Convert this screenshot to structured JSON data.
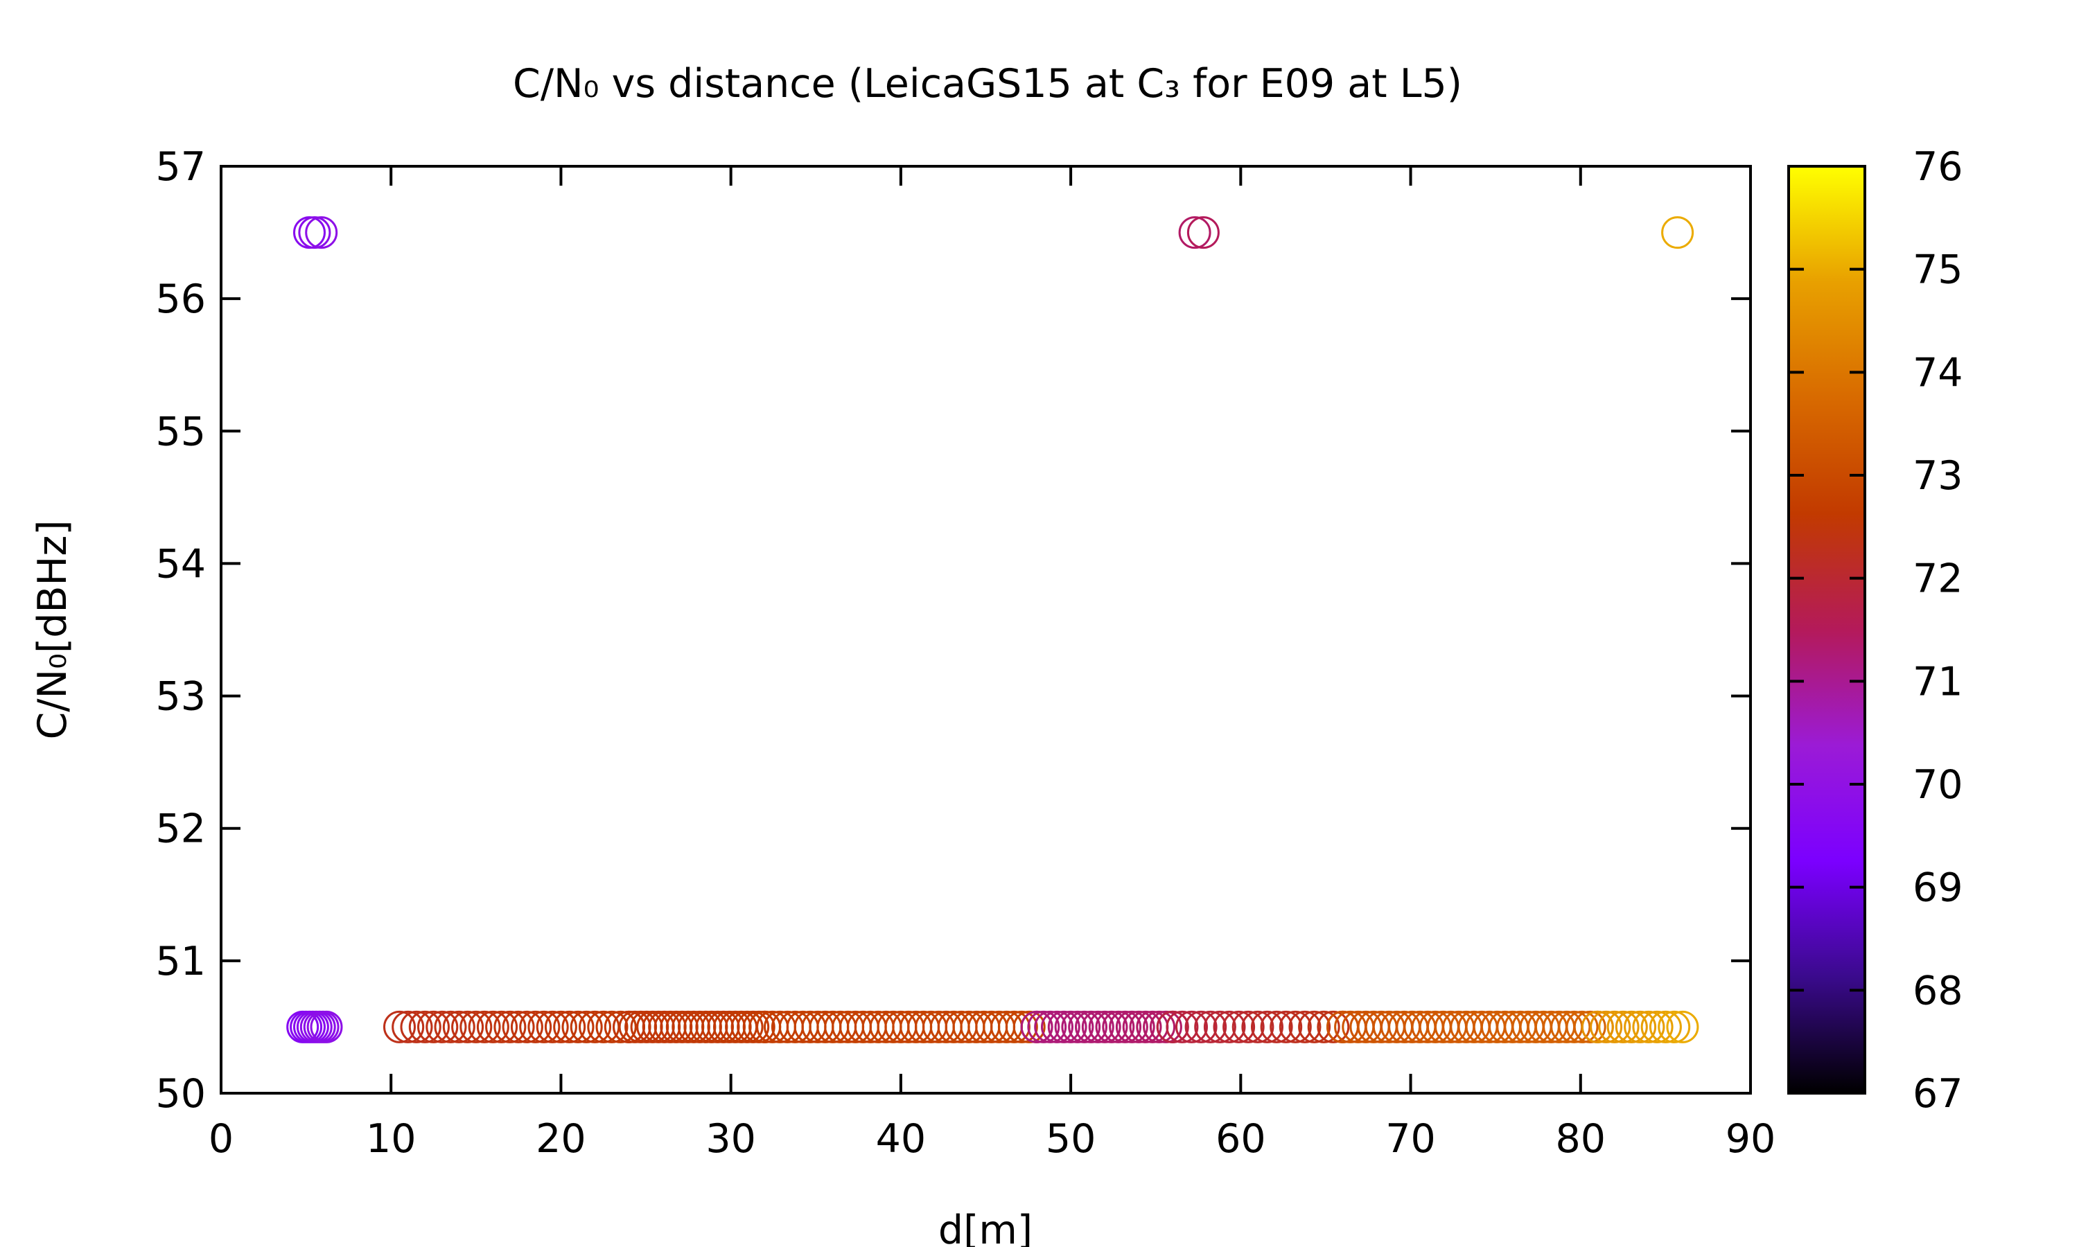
{
  "chart_data": {
    "type": "scatter",
    "title": "C/N₀ vs distance (LeicaGS15 at C₃ for E09 at L5)",
    "xlabel": "d[m]",
    "ylabel": "C/N₀[dBHz]",
    "xlim": [
      0,
      90
    ],
    "ylim": [
      50,
      57
    ],
    "x_ticks": [
      "0",
      "10",
      "20",
      "30",
      "40",
      "50",
      "60",
      "70",
      "80",
      "90"
    ],
    "y_ticks": [
      "50",
      "51",
      "52",
      "53",
      "54",
      "55",
      "56",
      "57"
    ],
    "grid": false,
    "marker": "open-circle",
    "colorbar": {
      "range": [
        67,
        76
      ],
      "ticks": [
        "67",
        "68",
        "69",
        "70",
        "71",
        "72",
        "73",
        "74",
        "75",
        "76"
      ],
      "palette": [
        "#000000",
        "#3a0a8c",
        "#7b00ff",
        "#9b1bd6",
        "#b41a5a",
        "#c23a00",
        "#d86a00",
        "#e8a000",
        "#ffff00"
      ]
    },
    "points": [
      {
        "x": 5.2,
        "y": 56.5,
        "c": 69.7
      },
      {
        "x": 5.5,
        "y": 56.5,
        "c": 69.8
      },
      {
        "x": 5.9,
        "y": 56.5,
        "c": 69.9
      },
      {
        "x": 57.3,
        "y": 56.5,
        "c": 71.4
      },
      {
        "x": 57.8,
        "y": 56.5,
        "c": 71.5
      },
      {
        "x": 85.7,
        "y": 56.5,
        "c": 75.0
      },
      {
        "x": 4.8,
        "y": 50.5,
        "c": 69.6
      },
      {
        "x": 5.0,
        "y": 50.5,
        "c": 69.6
      },
      {
        "x": 5.2,
        "y": 50.5,
        "c": 69.7
      },
      {
        "x": 5.4,
        "y": 50.5,
        "c": 69.7
      },
      {
        "x": 5.6,
        "y": 50.5,
        "c": 69.8
      },
      {
        "x": 5.8,
        "y": 50.5,
        "c": 69.8
      },
      {
        "x": 6.0,
        "y": 50.5,
        "c": 69.9
      },
      {
        "x": 6.2,
        "y": 50.5,
        "c": 69.9
      }
    ],
    "series_ranges": [
      {
        "x_from": 10.5,
        "x_to": 24,
        "step": 0.5,
        "y": 50.5,
        "c_from": 72.3,
        "c_to": 72.6
      },
      {
        "x_from": 24,
        "x_to": 32,
        "step": 0.35,
        "y": 50.5,
        "c_from": 72.5,
        "c_to": 72.6
      },
      {
        "x_from": 32,
        "x_to": 48,
        "step": 0.45,
        "y": 50.5,
        "c_from": 72.7,
        "c_to": 72.9
      },
      {
        "x_from": 48,
        "x_to": 56,
        "step": 0.4,
        "y": 50.5,
        "c_from": 71.2,
        "c_to": 71.4
      },
      {
        "x_from": 56,
        "x_to": 66,
        "step": 0.55,
        "y": 50.5,
        "c_from": 71.8,
        "c_to": 72.4
      },
      {
        "x_from": 66,
        "x_to": 81,
        "step": 0.45,
        "y": 50.5,
        "c_from": 73.2,
        "c_to": 73.6
      },
      {
        "x_from": 81,
        "x_to": 86,
        "step": 0.5,
        "y": 50.5,
        "c_from": 74.6,
        "c_to": 75.0
      }
    ]
  }
}
